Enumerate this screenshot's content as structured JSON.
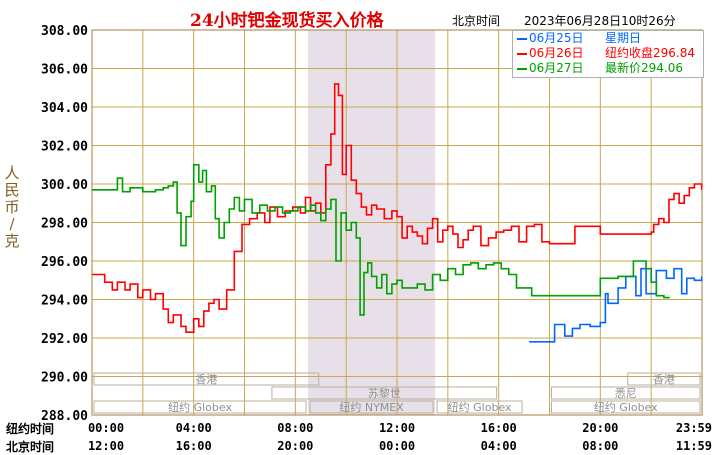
{
  "title": "24小时钯金现货买入价格",
  "header_tz": "北京时间",
  "header_time": "2023年06月28日10时26分",
  "y_axis_label": [
    "人",
    "民",
    "币",
    "/",
    "克"
  ],
  "legend": [
    {
      "date": "06月25日",
      "text": "星期日",
      "color": "#0066ff"
    },
    {
      "date": "06月26日",
      "text": "纽约收盘296.84",
      "color": "#ff0000"
    },
    {
      "date": "06月27日",
      "text": "最新价294.06",
      "color": "#00a000"
    }
  ],
  "row_labels": {
    "ny": "纽约时间",
    "bj": "北京时间"
  },
  "x_ticks_ny": [
    "00:00",
    "04:00",
    "08:00",
    "12:00",
    "16:00",
    "20:00",
    "23:59"
  ],
  "x_ticks_bj": [
    "12:00",
    "16:00",
    "20:00",
    "00:00",
    "04:00",
    "08:00",
    "11:59"
  ],
  "sessions": [
    {
      "label": "香港",
      "start": 0,
      "end": 9
    },
    {
      "label": "苏黎世",
      "start": 7,
      "end": 16
    },
    {
      "label": "纽约 Globex",
      "start": 0,
      "end": 8.5
    },
    {
      "label": "纽约 NYMEX",
      "start": 8.5,
      "end": 13.5
    },
    {
      "label": "纽约 Globex",
      "start": 13.5,
      "end": 17
    },
    {
      "label": "悉尼",
      "start": 18,
      "end": 24
    },
    {
      "label": "香港",
      "start": 21,
      "end": 24
    },
    {
      "label": "纽约 Globex",
      "start": 18,
      "end": 24
    }
  ],
  "colors": {
    "grid": "#c8a850",
    "axis_text": "#000000",
    "shade": "#e8e0e8"
  },
  "chart_data": {
    "type": "line",
    "title": "24小时钯金现货买入价格",
    "ylabel": "人民币/克",
    "ylim": [
      288,
      308
    ],
    "yticks": [
      288,
      290,
      292,
      294,
      296,
      298,
      300,
      302,
      304,
      306,
      308
    ],
    "xlim": [
      0,
      24
    ],
    "shaded_range": [
      8.5,
      13.5
    ],
    "series": [
      {
        "name": "06月25日",
        "color": "#0066ff",
        "x": [
          17.2,
          18.0,
          18.2,
          18.6,
          18.9,
          19.2,
          19.6,
          20.0,
          20.2,
          20.3,
          20.7,
          21.0,
          21.4,
          21.6,
          21.8,
          22.2,
          22.6,
          22.9,
          23.2,
          23.4,
          23.7,
          23.99
        ],
        "y": [
          291.8,
          291.8,
          292.7,
          292.1,
          292.5,
          292.7,
          292.6,
          292.8,
          294.3,
          293.8,
          294.6,
          295.2,
          294.2,
          295.6,
          294.3,
          295.5,
          295.1,
          295.6,
          294.3,
          295.1,
          295.0,
          295.2
        ]
      },
      {
        "name": "06月26日",
        "color": "#ff0000",
        "x": [
          0,
          0.5,
          0.8,
          1.0,
          1.3,
          1.5,
          1.8,
          2.0,
          2.3,
          2.5,
          2.8,
          3.0,
          3.2,
          3.5,
          3.7,
          4.0,
          4.2,
          4.4,
          4.6,
          4.8,
          5.0,
          5.3,
          5.6,
          5.9,
          6.2,
          6.5,
          6.8,
          7.0,
          7.3,
          7.6,
          7.9,
          8.2,
          8.4,
          8.6,
          8.8,
          9.0,
          9.2,
          9.4,
          9.55,
          9.7,
          9.85,
          10.0,
          10.2,
          10.4,
          10.6,
          10.8,
          11.0,
          11.2,
          11.5,
          11.8,
          12.0,
          12.2,
          12.4,
          12.6,
          12.8,
          13.0,
          13.2,
          13.4,
          13.6,
          13.8,
          14.0,
          14.2,
          14.4,
          14.6,
          14.8,
          15.0,
          15.3,
          15.6,
          15.9,
          16.2,
          16.5,
          16.8,
          17.1,
          17.4,
          17.7,
          18.0,
          18.5,
          19.0,
          19.5,
          20.0,
          20.5,
          21.0,
          21.5,
          22.0,
          22.1,
          22.3,
          22.5,
          22.7,
          22.9,
          23.1,
          23.3,
          23.5,
          23.7,
          23.99
        ],
        "y": [
          295.3,
          294.9,
          294.5,
          294.9,
          294.5,
          294.8,
          294.1,
          294.5,
          294.0,
          294.3,
          293.5,
          292.8,
          293.2,
          292.6,
          292.3,
          293.0,
          292.6,
          293.4,
          293.8,
          294.0,
          293.5,
          294.5,
          296.5,
          297.9,
          298.2,
          298.5,
          298.0,
          298.8,
          298.3,
          298.6,
          298.8,
          298.5,
          299.3,
          298.6,
          299.0,
          298.5,
          301.0,
          302.6,
          305.2,
          304.6,
          300.5,
          302.0,
          300.2,
          299.5,
          298.8,
          298.4,
          298.9,
          298.7,
          298.2,
          298.6,
          298.3,
          297.2,
          297.8,
          297.5,
          297.3,
          296.9,
          297.7,
          298.2,
          297.0,
          297.6,
          297.8,
          297.4,
          296.7,
          297.1,
          297.6,
          297.8,
          296.8,
          297.2,
          297.5,
          297.6,
          297.8,
          297.0,
          297.8,
          297.9,
          297.0,
          296.9,
          296.9,
          297.8,
          297.8,
          297.4,
          297.4,
          297.4,
          297.4,
          297.5,
          297.9,
          298.2,
          298.0,
          299.2,
          299.5,
          299.0,
          299.4,
          299.8,
          300.0,
          299.7
        ]
      },
      {
        "name": "06月27日",
        "color": "#00a000",
        "x": [
          0,
          0.7,
          1.0,
          1.2,
          1.5,
          2.0,
          2.5,
          2.8,
          3.0,
          3.2,
          3.35,
          3.5,
          3.7,
          3.9,
          4.0,
          4.2,
          4.35,
          4.5,
          4.7,
          4.85,
          5.0,
          5.2,
          5.4,
          5.6,
          5.8,
          6.0,
          6.3,
          6.6,
          6.9,
          7.2,
          7.5,
          7.8,
          8.1,
          8.4,
          8.6,
          8.8,
          9.0,
          9.2,
          9.4,
          9.6,
          9.8,
          10.0,
          10.2,
          10.4,
          10.55,
          10.7,
          10.85,
          11.0,
          11.2,
          11.4,
          11.6,
          11.8,
          12.0,
          12.2,
          12.5,
          12.8,
          13.1,
          13.4,
          13.7,
          14.0,
          14.3,
          14.6,
          14.9,
          15.2,
          15.5,
          15.8,
          16.1,
          16.4,
          16.7,
          17.0,
          17.3,
          18.0,
          18.6,
          19.0,
          19.5,
          20.0,
          20.4,
          20.7,
          21.0,
          21.3,
          21.6,
          21.8,
          22.0,
          22.2,
          22.5,
          22.7
        ],
        "y": [
          299.7,
          299.7,
          300.3,
          299.6,
          299.8,
          299.6,
          299.7,
          299.8,
          299.9,
          300.1,
          298.5,
          296.8,
          298.3,
          299.1,
          301.0,
          300.1,
          300.7,
          299.6,
          299.9,
          298.2,
          297.2,
          298.0,
          298.7,
          299.3,
          298.6,
          299.2,
          298.5,
          298.9,
          298.6,
          298.8,
          298.5,
          298.6,
          298.8,
          298.6,
          298.9,
          298.5,
          298.1,
          298.7,
          299.2,
          296.0,
          298.5,
          297.6,
          298.0,
          297.2,
          293.2,
          295.4,
          295.9,
          295.2,
          294.6,
          295.3,
          294.3,
          294.8,
          295.0,
          294.6,
          294.6,
          294.8,
          294.5,
          295.3,
          295.0,
          295.6,
          295.3,
          295.8,
          295.9,
          295.6,
          295.8,
          295.9,
          295.6,
          295.3,
          294.6,
          294.6,
          294.2,
          294.2,
          294.2,
          294.2,
          294.2,
          295.1,
          295.1,
          295.2,
          295.2,
          296.0,
          296.0,
          295.6,
          294.9,
          294.2,
          294.1,
          294.06
        ]
      }
    ]
  }
}
